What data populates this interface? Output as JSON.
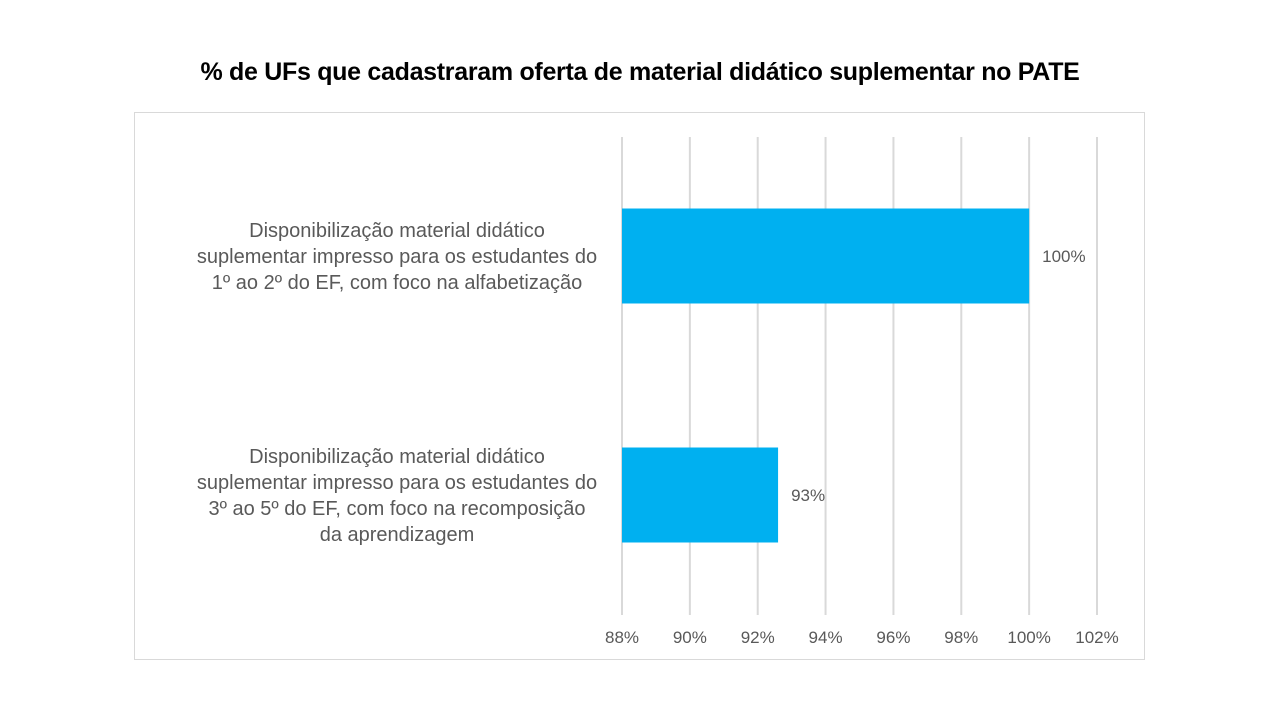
{
  "chart_data": {
    "type": "bar",
    "orientation": "horizontal",
    "title": "% de UFs que cadastraram oferta de material didático suplementar no PATE",
    "categories": [
      [
        "Disponibilização material didático",
        "suplementar impresso para os estudantes do",
        "1º ao 2º do EF, com foco na alfabetização"
      ],
      [
        "Disponibilização material didático",
        "suplementar impresso para os estudantes do",
        "3º ao 5º do EF, com foco na recomposição",
        "da aprendizagem"
      ]
    ],
    "values": [
      100,
      92.6
    ],
    "data_labels": [
      "100%",
      "93%"
    ],
    "xlim": [
      88,
      102
    ],
    "xticks": [
      88,
      90,
      92,
      94,
      96,
      98,
      100,
      102
    ],
    "xtick_labels": [
      "88%",
      "90%",
      "92%",
      "94%",
      "96%",
      "98%",
      "100%",
      "102%"
    ],
    "xlabel": "",
    "ylabel": "",
    "grid": true,
    "legend": "none",
    "colors": {
      "bar": "#00b0f0",
      "grid": "#d9d9d9",
      "text": "#595959"
    }
  }
}
